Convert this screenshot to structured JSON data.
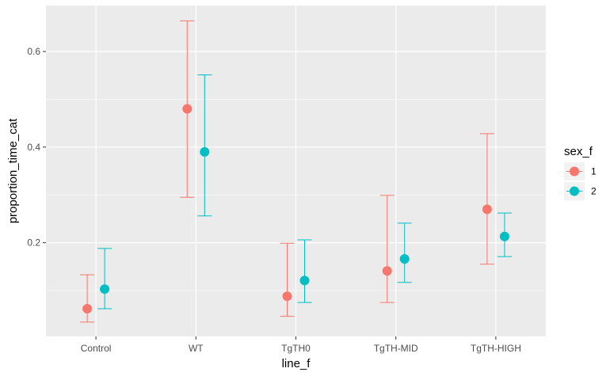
{
  "chart_data": {
    "type": "scatter",
    "title": "",
    "xlabel": "line_f",
    "ylabel": "proportion_time_cat",
    "categories": [
      "Control",
      "WT",
      "TgTH0",
      "TgTH-MID",
      "TgTH-HIGH"
    ],
    "y_ticks": [
      {
        "value": 0.2,
        "label": "0.2"
      },
      {
        "value": 0.4,
        "label": "0.4"
      },
      {
        "value": 0.6,
        "label": "0.6"
      }
    ],
    "ylim": [
      0.0,
      0.7
    ],
    "grid": true,
    "legend": {
      "title": "sex_f",
      "position": "right"
    },
    "series": [
      {
        "name": "1",
        "color": "#F8766D",
        "y": [
          0.062,
          0.48,
          0.088,
          0.141,
          0.27
        ],
        "lower": [
          0.034,
          0.295,
          0.046,
          0.075,
          0.155
        ],
        "upper": [
          0.133,
          0.664,
          0.199,
          0.299,
          0.428
        ]
      },
      {
        "name": "2",
        "color": "#00BFC4",
        "y": [
          0.103,
          0.39,
          0.121,
          0.166,
          0.213
        ],
        "lower": [
          0.062,
          0.256,
          0.075,
          0.117,
          0.171
        ],
        "upper": [
          0.188,
          0.551,
          0.206,
          0.241,
          0.262
        ]
      }
    ]
  }
}
